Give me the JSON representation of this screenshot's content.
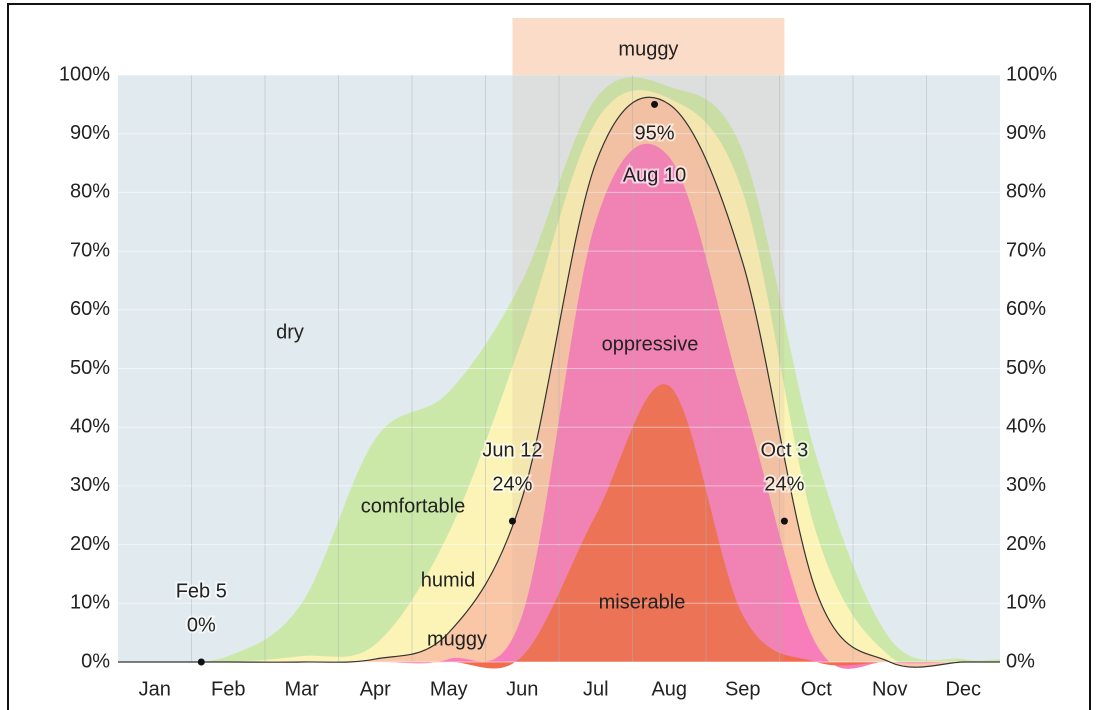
{
  "chart_data": {
    "type": "stacked_area",
    "categories": [
      "Jan",
      "Feb",
      "Mar",
      "Apr",
      "May",
      "Jun",
      "Jul",
      "Aug",
      "Sep",
      "Oct",
      "Nov",
      "Dec"
    ],
    "ylim": [
      0,
      100
    ],
    "yticks": [
      {
        "value": 0,
        "label": "0%"
      },
      {
        "value": 10,
        "label": "10%"
      },
      {
        "value": 20,
        "label": "20%"
      },
      {
        "value": 30,
        "label": "30%"
      },
      {
        "value": 40,
        "label": "40%"
      },
      {
        "value": 50,
        "label": "50%"
      },
      {
        "value": 60,
        "label": "60%"
      },
      {
        "value": 70,
        "label": "70%"
      },
      {
        "value": 80,
        "label": "80%"
      },
      {
        "value": 90,
        "label": "90%"
      },
      {
        "value": 100,
        "label": "100%"
      }
    ],
    "y2lim": [
      0,
      100
    ],
    "y2ticks": [
      {
        "value": 0,
        "label": "0%"
      },
      {
        "value": 10,
        "label": "10%"
      },
      {
        "value": 20,
        "label": "20%"
      },
      {
        "value": 30,
        "label": "30%"
      },
      {
        "value": 40,
        "label": "40%"
      },
      {
        "value": 50,
        "label": "50%"
      },
      {
        "value": 60,
        "label": "60%"
      },
      {
        "value": 70,
        "label": "70%"
      },
      {
        "value": 80,
        "label": "80%"
      },
      {
        "value": 90,
        "label": "90%"
      },
      {
        "value": 100,
        "label": "100%"
      }
    ],
    "grid": true,
    "series": [
      {
        "name": "miserable",
        "color": "#f26b4c",
        "values": [
          0,
          0,
          0,
          0,
          0,
          1,
          25,
          47,
          8,
          0,
          0,
          0
        ]
      },
      {
        "name": "oppressive",
        "color": "#f77dbb",
        "values": [
          0,
          0,
          0,
          0,
          0.5,
          7,
          50,
          39,
          37,
          3,
          0,
          0
        ]
      },
      {
        "name": "muggy",
        "color": "#f9c6a6",
        "values": [
          0,
          0,
          0,
          0.5,
          4.5,
          20,
          10,
          9,
          23,
          9,
          0,
          0
        ]
      },
      {
        "name": "humid",
        "color": "#fbf4b6",
        "values": [
          0,
          0,
          1,
          2.5,
          17,
          27,
          7,
          1,
          12,
          10,
          1,
          0
        ]
      },
      {
        "name": "comfortable",
        "color": "#cbe8a9",
        "values": [
          0,
          1,
          9,
          35,
          24,
          10,
          4,
          2,
          7,
          13,
          3,
          0.5
        ]
      },
      {
        "name": "dry",
        "color": "#e1eaee",
        "values": [
          100,
          99,
          90,
          62,
          54,
          35,
          4,
          2,
          13,
          65,
          96,
          99.5
        ]
      }
    ],
    "annotations": [
      {
        "label": "Feb 5",
        "value": 0,
        "value_label": "0%"
      },
      {
        "label": "Jun 12",
        "value": 24,
        "value_label": "24%"
      },
      {
        "label": "Aug 10",
        "value": 95,
        "value_label": "95%"
      },
      {
        "label": "Oct 3",
        "value": 24,
        "value_label": "24%"
      }
    ],
    "highlight": {
      "label": "muggy",
      "start": "Jun 12",
      "end": "Oct 3"
    }
  }
}
